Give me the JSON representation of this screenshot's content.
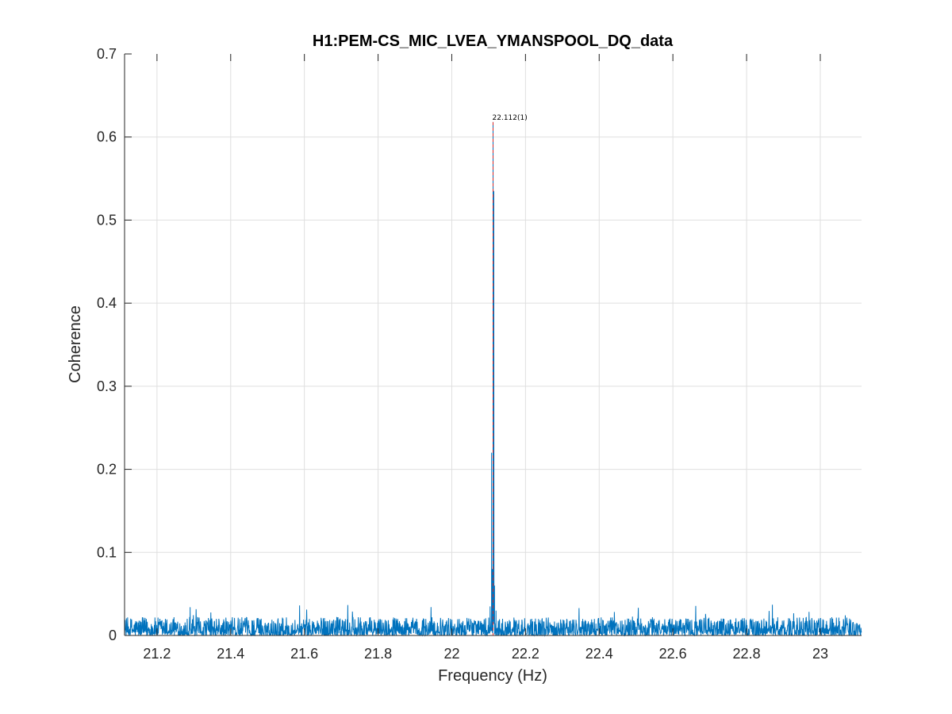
{
  "chart_data": {
    "type": "line",
    "title": "H1:PEM-CS_MIC_LVEA_YMANSPOOL_DQ_data",
    "xlabel": "Frequency (Hz)",
    "ylabel": "Coherence",
    "xlim": [
      21.112,
      23.112
    ],
    "ylim": [
      0,
      0.7
    ],
    "grid": true,
    "x_ticks": [
      21.2,
      21.4,
      21.6,
      21.8,
      22.0,
      22.2,
      22.4,
      22.6,
      22.8,
      23.0
    ],
    "x_tick_labels": [
      "21.2",
      "21.4",
      "21.6",
      "21.8",
      "22",
      "22.2",
      "22.4",
      "22.6",
      "22.8",
      "23"
    ],
    "y_ticks": [
      0,
      0.1,
      0.2,
      0.3,
      0.4,
      0.5,
      0.6,
      0.7
    ],
    "y_tick_labels": [
      "0",
      "0.1",
      "0.2",
      "0.3",
      "0.4",
      "0.5",
      "0.6",
      "0.7"
    ],
    "series_color": "#0072bd",
    "marker_color": "#d62728",
    "noise_floor": {
      "typical": 0.01,
      "max": 0.037
    },
    "peaks": [
      {
        "x": 22.104,
        "y": 0.035
      },
      {
        "x": 22.108,
        "y": 0.22
      },
      {
        "x": 22.11,
        "y": 0.08
      },
      {
        "x": 22.112,
        "y": 0.618
      },
      {
        "x": 22.114,
        "y": 0.535
      },
      {
        "x": 22.116,
        "y": 0.06
      },
      {
        "x": 22.12,
        "y": 0.03
      },
      {
        "x": 22.87,
        "y": 0.037
      },
      {
        "x": 21.29,
        "y": 0.034
      }
    ],
    "annotations": [
      {
        "x": 22.112,
        "y": 0.618,
        "text": "22.112(1)"
      }
    ]
  }
}
